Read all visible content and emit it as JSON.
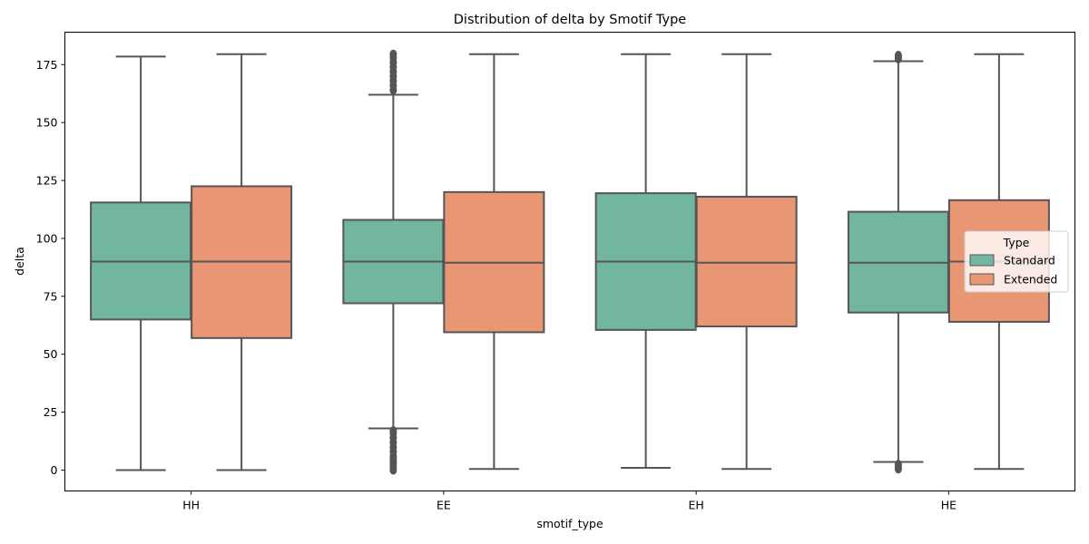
{
  "chart_data": {
    "type": "boxplot",
    "title": "Distribution of delta by Smotif Type",
    "xlabel": "smotif_type",
    "ylabel": "delta",
    "ylim": [
      -9,
      189
    ],
    "yticks": [
      0,
      25,
      50,
      75,
      100,
      125,
      150,
      175
    ],
    "categories": [
      "HH",
      "EE",
      "EH",
      "HE"
    ],
    "legend": {
      "title": "Type",
      "placement": "center-right"
    },
    "colors": {
      "Standard": "#72b6a1",
      "Extended": "#e99675",
      "line": "#555555"
    },
    "series": [
      {
        "name": "Standard",
        "boxes": [
          {
            "whisker_low": 0,
            "q1": 65,
            "median": 90,
            "q3": 115.5,
            "whisker_high": 178.5,
            "outliers": []
          },
          {
            "whisker_low": 18,
            "q1": 72,
            "median": 90,
            "q3": 108,
            "whisker_high": 162,
            "outliers": [
              0,
              1.5,
              3,
              4.5,
              6,
              8,
              10,
              12,
              14,
              16,
              17,
              164,
              166,
              168,
              170,
              172,
              174,
              176,
              178,
              179.5
            ]
          },
          {
            "whisker_low": 1,
            "q1": 60.5,
            "median": 90,
            "q3": 119.5,
            "whisker_high": 179.5,
            "outliers": []
          },
          {
            "whisker_low": 3.5,
            "q1": 68,
            "median": 89.5,
            "q3": 111.5,
            "whisker_high": 176.5,
            "outliers": [
              0.5,
              1.5,
              2.5,
              177.5,
              178.5,
              179
            ]
          }
        ]
      },
      {
        "name": "Extended",
        "boxes": [
          {
            "whisker_low": 0,
            "q1": 57,
            "median": 90,
            "q3": 122.5,
            "whisker_high": 179.5,
            "outliers": []
          },
          {
            "whisker_low": 0.5,
            "q1": 59.5,
            "median": 89.5,
            "q3": 120,
            "whisker_high": 179.5,
            "outliers": []
          },
          {
            "whisker_low": 0.5,
            "q1": 62,
            "median": 89.5,
            "q3": 118,
            "whisker_high": 179.5,
            "outliers": []
          },
          {
            "whisker_low": 0.5,
            "q1": 64,
            "median": 90,
            "q3": 116.5,
            "whisker_high": 179.5,
            "outliers": []
          }
        ]
      }
    ]
  }
}
